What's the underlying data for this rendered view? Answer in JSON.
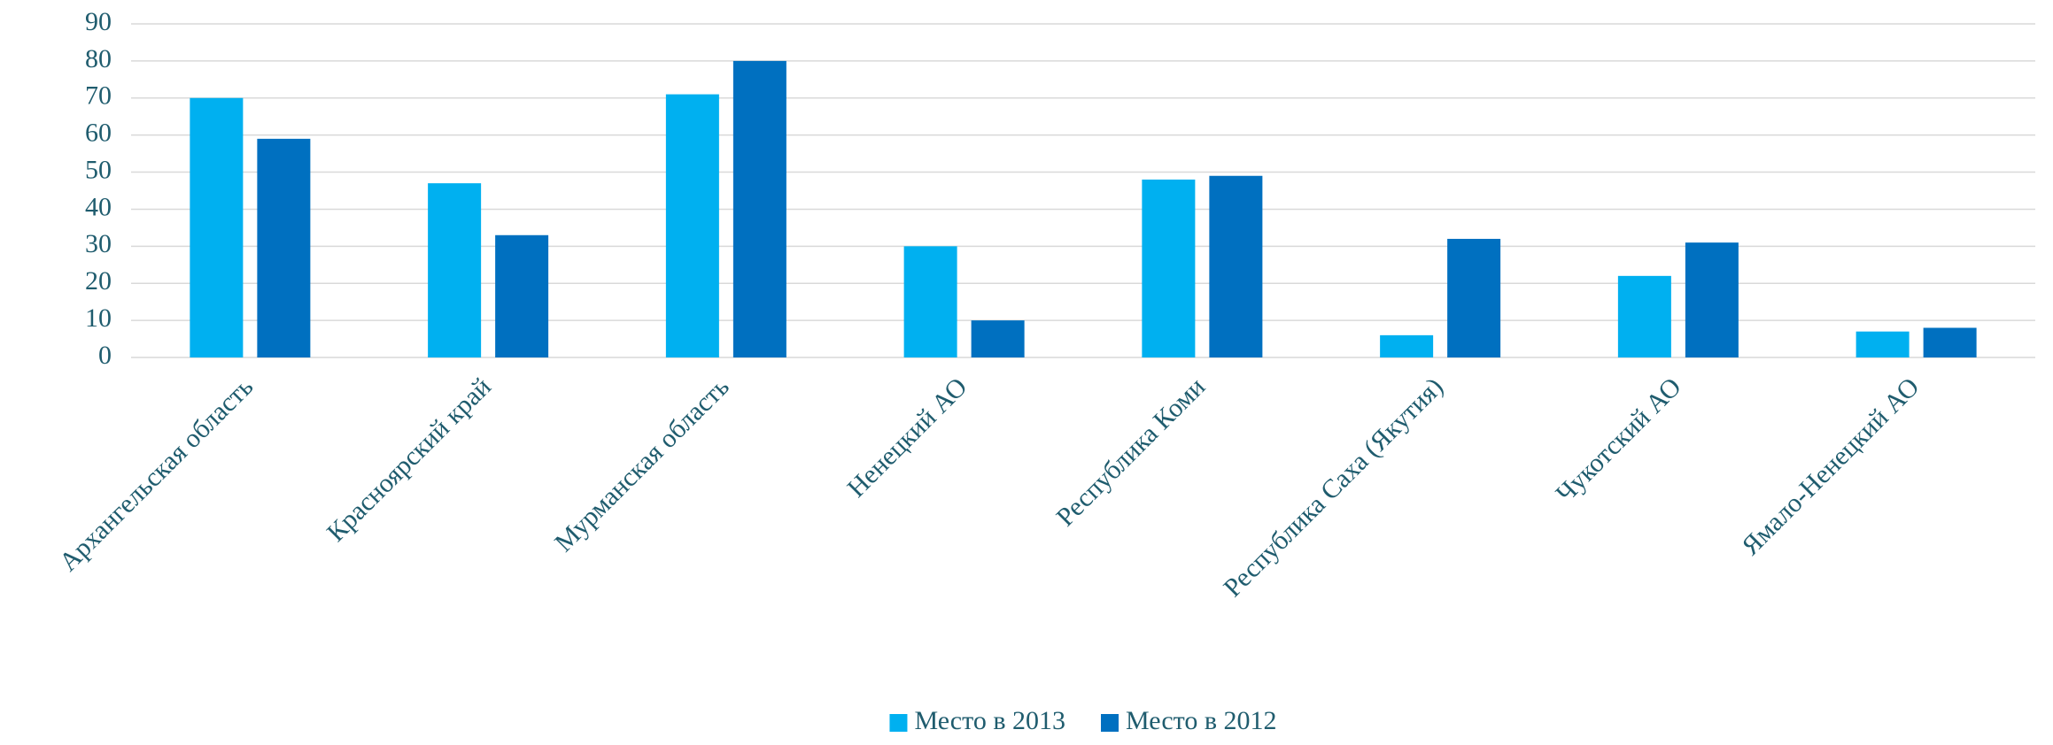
{
  "chart_data": {
    "type": "bar",
    "categories": [
      "Архангельская область",
      "Красноярский край",
      "Мурманская область",
      "Ненецкий АО",
      "Республика Коми",
      "Республика Саха (Якутия)",
      "Чукотский АО",
      "Ямало-Ненецкий АО"
    ],
    "series": [
      {
        "name": "Место в 2013",
        "color": "#00b0f0",
        "values": [
          70,
          47,
          71,
          30,
          48,
          6,
          22,
          7
        ]
      },
      {
        "name": "Место в 2012",
        "color": "#0070c0",
        "values": [
          59,
          33,
          80,
          10,
          49,
          32,
          31,
          8
        ]
      }
    ],
    "ylim": [
      0,
      90
    ],
    "yticks": [
      0,
      10,
      20,
      30,
      40,
      50,
      60,
      70,
      80,
      90
    ],
    "grid": true,
    "legend": "bottom"
  }
}
